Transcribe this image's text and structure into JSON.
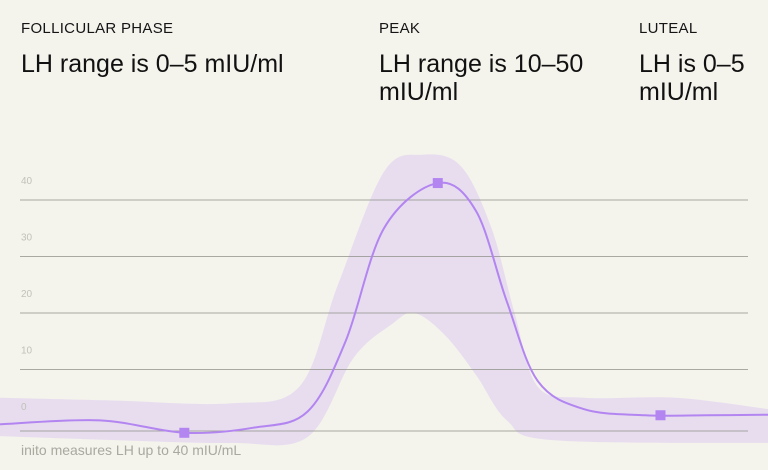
{
  "phases": [
    {
      "label": "FOLLICULAR PHASE",
      "description": "LH range is 0–5 mIU/ml"
    },
    {
      "label": "PEAK",
      "description": "LH range is 10–50 mIU/ml"
    },
    {
      "label": "LUTEAL",
      "description": "LH is 0–5 mIU/ml"
    }
  ],
  "footnote": "inito measures LH up to 40 mIU/mL",
  "chart_data": {
    "type": "area",
    "y_ticks": [
      0,
      10,
      20,
      30,
      40
    ],
    "ylim": [
      -3,
      48
    ],
    "xlim": [
      0,
      100
    ],
    "grid": true,
    "colors": {
      "line": "#b385f0",
      "band": "#e3d5f0",
      "marker": "#b385f0",
      "grid": "#8a8a82"
    },
    "series": [
      {
        "values": [
          [
            0,
            0.3
          ],
          [
            13,
            1
          ],
          [
            24,
            -1.2
          ],
          [
            33,
            -0.3
          ],
          [
            40,
            2.5
          ],
          [
            45,
            15
          ],
          [
            50,
            35
          ],
          [
            57,
            43
          ],
          [
            62,
            38
          ],
          [
            66,
            22
          ],
          [
            70,
            8
          ],
          [
            76,
            3
          ],
          [
            84,
            1.9
          ],
          [
            92,
            1.9
          ],
          [
            100,
            2
          ]
        ],
        "markers": [
          [
            24,
            -1.2
          ],
          [
            57,
            43
          ],
          [
            86,
            1.9
          ]
        ]
      }
    ],
    "band": {
      "upper": [
        [
          0,
          5
        ],
        [
          15,
          4.5
        ],
        [
          30,
          4
        ],
        [
          39,
          7
        ],
        [
          44,
          25
        ],
        [
          50,
          45
        ],
        [
          55,
          48
        ],
        [
          60,
          46
        ],
        [
          64,
          35
        ],
        [
          67,
          20
        ],
        [
          70,
          7
        ],
        [
          76,
          5
        ],
        [
          88,
          5
        ],
        [
          100,
          3
        ]
      ],
      "lower": [
        [
          0,
          -1.8
        ],
        [
          15,
          -2.5
        ],
        [
          30,
          -3
        ],
        [
          40,
          -2
        ],
        [
          46,
          12
        ],
        [
          51,
          18
        ],
        [
          54,
          20
        ],
        [
          58,
          16
        ],
        [
          62,
          9
        ],
        [
          66,
          1
        ],
        [
          72,
          -2.5
        ],
        [
          100,
          -3
        ]
      ]
    }
  }
}
